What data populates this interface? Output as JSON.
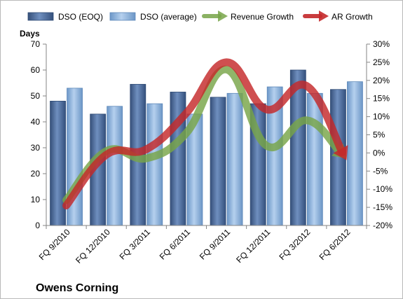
{
  "chart_data": {
    "type": "bar",
    "title": "Owens Corning",
    "ylabel": "Days",
    "categories": [
      "FQ 9/2010",
      "FQ 12/2010",
      "FQ 3/2011",
      "FQ 6/2011",
      "FQ 9/2011",
      "FQ 12/2011",
      "FQ 3/2012",
      "FQ 6/2012"
    ],
    "ylim": [
      0,
      70
    ],
    "yticks": [
      0,
      10,
      20,
      30,
      40,
      50,
      60,
      70
    ],
    "y2lim": [
      -20,
      30
    ],
    "y2ticks": [
      "-20%",
      "-15%",
      "-10%",
      "-5%",
      "0%",
      "5%",
      "10%",
      "15%",
      "20%",
      "25%",
      "30%"
    ],
    "series": [
      {
        "name": "DSO (EOQ)",
        "kind": "bar",
        "axis": "left",
        "color": "#4f6f9f",
        "values": [
          48,
          43,
          54.5,
          51.5,
          49.5,
          47,
          60,
          52.5
        ]
      },
      {
        "name": "DSO (average)",
        "kind": "bar",
        "axis": "left",
        "color": "#8fb4dc",
        "values": [
          53,
          46,
          47,
          43,
          51,
          53.5,
          51,
          55.5
        ]
      },
      {
        "name": "Revenue Growth",
        "kind": "arrow-line",
        "axis": "right",
        "color": "#77a548",
        "values": [
          -13,
          0.5,
          -1.5,
          5.5,
          23,
          2,
          9,
          -1.5
        ]
      },
      {
        "name": "AR Growth",
        "kind": "arrow-line",
        "axis": "right",
        "color": "#c4282a",
        "values": [
          -14.5,
          -0.5,
          1,
          11,
          25,
          12,
          18.5,
          -2
        ]
      }
    ],
    "legend_position": "top",
    "grid": false
  }
}
